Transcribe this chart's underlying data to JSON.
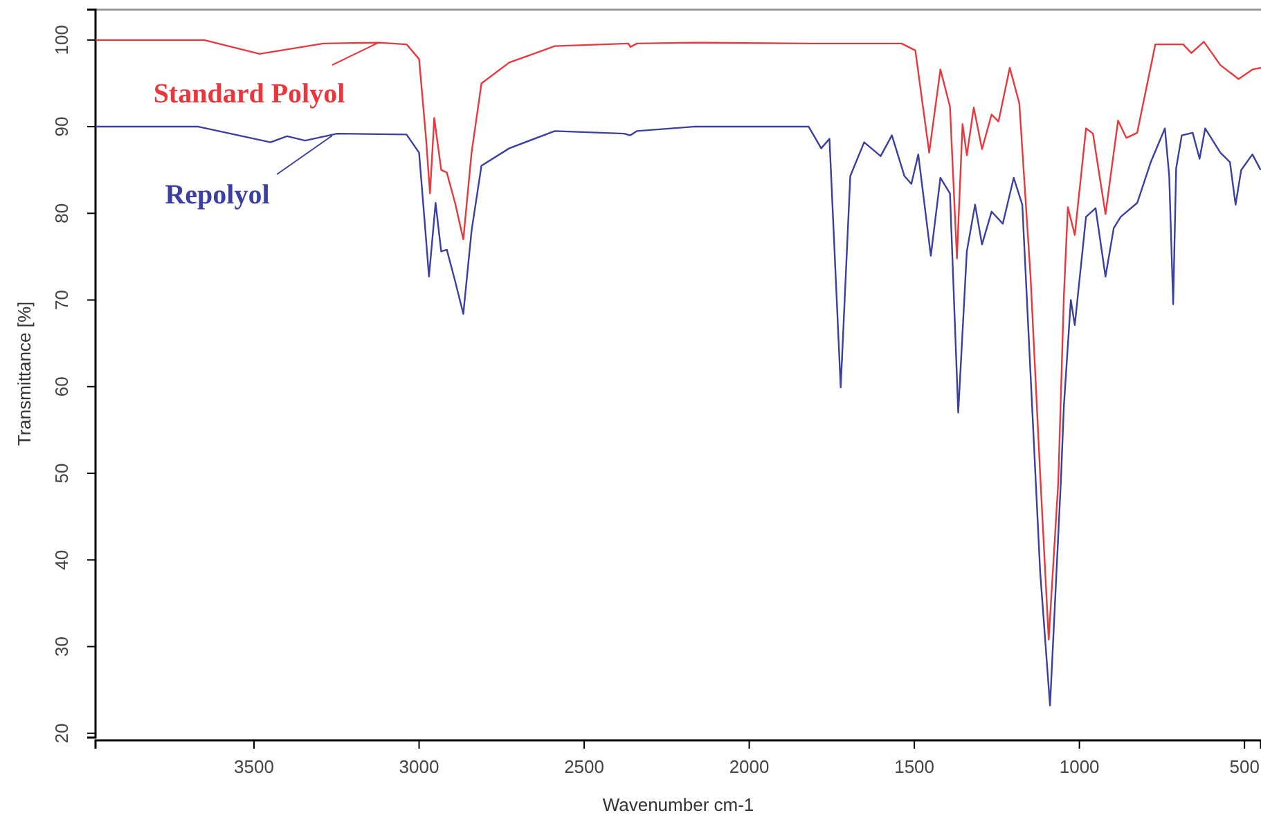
{
  "chart_data": {
    "type": "line",
    "xlabel": "Wavenumber cm-1",
    "ylabel": "Transmittance [%]",
    "xlim": [
      3980,
      450
    ],
    "ylim": [
      19.5,
      103.5
    ],
    "xticks": [
      3500,
      3000,
      2500,
      2000,
      1500,
      1000,
      500
    ],
    "yticks": [
      20,
      30,
      40,
      50,
      60,
      70,
      80,
      90,
      100
    ],
    "grid": false,
    "legend": "top left",
    "marker": "none",
    "line_style": "solid",
    "series": [
      {
        "name": "Standard Polyol",
        "color": "#e8383d",
        "x": [
          3980,
          3651,
          3483,
          3290,
          3122,
          3038,
          3000,
          2979,
          2967,
          2954,
          2933,
          2916,
          2891,
          2866,
          2841,
          2811,
          2727,
          2589,
          2366,
          2360,
          2340,
          2169,
          1820,
          1539,
          1497,
          1455,
          1421,
          1392,
          1371,
          1354,
          1341,
          1320,
          1295,
          1266,
          1245,
          1211,
          1182,
          1148,
          1119,
          1093,
          1064,
          1047,
          1035,
          1014,
          980,
          959,
          921,
          883,
          858,
          825,
          770,
          686,
          661,
          623,
          573,
          518,
          476,
          450
        ],
        "values": [
          100,
          100,
          98.4,
          99.6,
          99.7,
          99.5,
          97.8,
          88.7,
          82.3,
          91,
          85,
          84.7,
          81.2,
          77,
          87,
          95,
          97.4,
          99.3,
          99.6,
          99.2,
          99.6,
          99.7,
          99.6,
          99.6,
          98.8,
          87,
          96.6,
          92.3,
          74.8,
          90.3,
          86.7,
          92.2,
          87.4,
          91.4,
          90.6,
          96.8,
          92.7,
          72.7,
          50,
          30.8,
          49,
          70.5,
          80.7,
          77.5,
          89.8,
          89.2,
          79.9,
          90.7,
          88.7,
          89.3,
          99.5,
          99.5,
          98.5,
          99.8,
          97.1,
          95.5,
          96.6,
          96.8
        ]
      },
      {
        "name": "Repolyol",
        "color": "#3a3fa0",
        "x": [
          3980,
          3668,
          3450,
          3400,
          3345,
          3248,
          3038,
          3000,
          2983,
          2970,
          2950,
          2933,
          2916,
          2891,
          2866,
          2841,
          2811,
          2727,
          2589,
          2379,
          2360,
          2340,
          2169,
          1820,
          1782,
          1757,
          1723,
          1694,
          1652,
          1602,
          1568,
          1530,
          1509,
          1488,
          1450,
          1421,
          1392,
          1367,
          1341,
          1316,
          1295,
          1266,
          1232,
          1199,
          1173,
          1119,
          1089,
          1056,
          1047,
          1026,
          1014,
          980,
          951,
          921,
          896,
          875,
          825,
          783,
          741,
          728,
          716,
          707,
          690,
          657,
          636,
          619,
          573,
          544,
          527,
          510,
          476,
          451
        ],
        "values": [
          90,
          90,
          88.2,
          88.9,
          88.4,
          89.2,
          89.1,
          87,
          79,
          72.7,
          81.2,
          75.6,
          75.8,
          72.2,
          68.4,
          78,
          85.5,
          87.5,
          89.5,
          89.2,
          89,
          89.5,
          90,
          90,
          87.5,
          88.6,
          59.9,
          84.3,
          88.2,
          86.6,
          89,
          84.3,
          83.4,
          86.8,
          75.1,
          84.1,
          82.3,
          57,
          75.6,
          81,
          76.4,
          80.2,
          78.8,
          84.1,
          81,
          38.7,
          23.2,
          49.2,
          57.8,
          70,
          67.1,
          79.6,
          80.6,
          72.7,
          78.3,
          79.6,
          81.2,
          86,
          89.8,
          84.3,
          69.5,
          85.2,
          89,
          89.3,
          86.3,
          89.8,
          87,
          85.9,
          81,
          85,
          86.8,
          85
        ]
      }
    ]
  }
}
